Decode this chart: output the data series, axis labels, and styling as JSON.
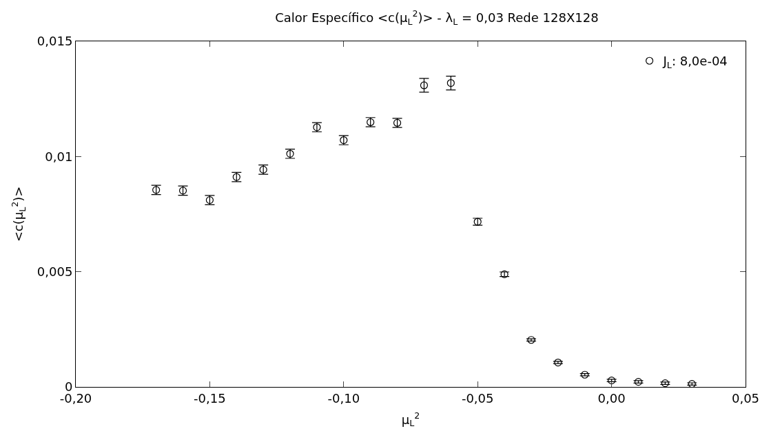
{
  "chart_data": {
    "type": "scatter",
    "title": "Calor Específico <c(μ$_{L}$$^{2}$)> - λ$_{L}$ = 0,03 Rede 128X128",
    "xlabel": "μ$_{L}$$^{2}$",
    "ylabel": "<c(μ$_{L}$$^{2}$)>",
    "x": [
      -0.17,
      -0.16,
      -0.15,
      -0.14,
      -0.13,
      -0.12,
      -0.11,
      -0.1,
      -0.09,
      -0.08,
      -0.07,
      -0.06,
      -0.05,
      -0.04,
      -0.03,
      -0.02,
      -0.01,
      0.0,
      0.01,
      0.02,
      0.03
    ],
    "series": [
      {
        "name": "J$_{L}$: 8,0e-04",
        "color": "#000000",
        "values": [
          0.00855,
          0.00852,
          0.00811,
          0.00911,
          0.00943,
          0.01012,
          0.01127,
          0.01071,
          0.01149,
          0.01146,
          0.01309,
          0.01319,
          0.00717,
          0.00489,
          0.00204,
          0.00106,
          0.00053,
          0.00028,
          0.00022,
          0.00016,
          0.00013
        ],
        "errors": [
          0.0002,
          0.0002,
          0.0002,
          0.0002,
          0.0002,
          0.0002,
          0.0002,
          0.0002,
          0.0002,
          0.0002,
          0.0003,
          0.0003,
          0.00015,
          0.0001,
          5e-05,
          5e-05,
          5e-05,
          5e-05,
          5e-05,
          5e-05,
          5e-05
        ]
      }
    ],
    "xlim": [
      -0.2,
      0.05
    ],
    "xticks": [
      {
        "value": -0.2,
        "label": "-0,20"
      },
      {
        "value": -0.15,
        "label": "-0,15"
      },
      {
        "value": -0.1,
        "label": "-0,10"
      },
      {
        "value": -0.05,
        "label": "-0,05"
      },
      {
        "value": 0,
        "label": "0,00"
      },
      {
        "value": 0.05,
        "label": "0,05"
      }
    ],
    "ylim": [
      0,
      0.015
    ],
    "yticks": [
      0,
      {
        "value": 0.005,
        "label": "0,005"
      },
      {
        "value": 0.01,
        "label": "0,01"
      },
      {
        "value": 0.015,
        "label": "0,015"
      }
    ],
    "marker": "circle",
    "legend": "top right"
  }
}
